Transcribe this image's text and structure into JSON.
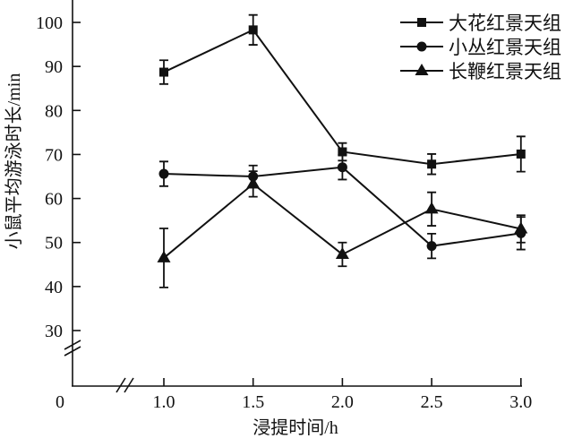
{
  "chart_data": {
    "type": "line",
    "title": "",
    "xlabel": "浸提时间/h",
    "ylabel": "小鼠平均游泳时长/min",
    "x": [
      1.0,
      1.5,
      2.0,
      2.5,
      3.0
    ],
    "x_tick_labels": [
      "0",
      "1.0",
      "1.5",
      "2.0",
      "2.5",
      "3.0"
    ],
    "y_tick_labels": [
      "30",
      "40",
      "50",
      "60",
      "70",
      "80",
      "90",
      "100"
    ],
    "y_ticks": [
      30,
      40,
      50,
      60,
      70,
      80,
      90,
      100
    ],
    "ylim": [
      30,
      100
    ],
    "axis_breaks": "both axes broken near origin",
    "legend_position": "top-right",
    "grid": false,
    "series": [
      {
        "name": "大花红景天组",
        "marker": "square",
        "values": [
          88.7,
          98.3,
          70.6,
          67.8,
          70.1
        ],
        "errors": [
          2.7,
          3.4,
          2.0,
          2.3,
          4.0
        ]
      },
      {
        "name": "小丛红景天组",
        "marker": "circle",
        "values": [
          65.6,
          65.0,
          67.1,
          49.2,
          52.1
        ],
        "errors": [
          2.8,
          2.5,
          2.8,
          2.8,
          3.7
        ]
      },
      {
        "name": "长鞭红景天组",
        "marker": "triangle",
        "values": [
          46.5,
          63.3,
          47.3,
          57.6,
          53.1
        ],
        "errors": [
          6.7,
          2.9,
          2.7,
          3.8,
          3.1
        ]
      }
    ]
  }
}
